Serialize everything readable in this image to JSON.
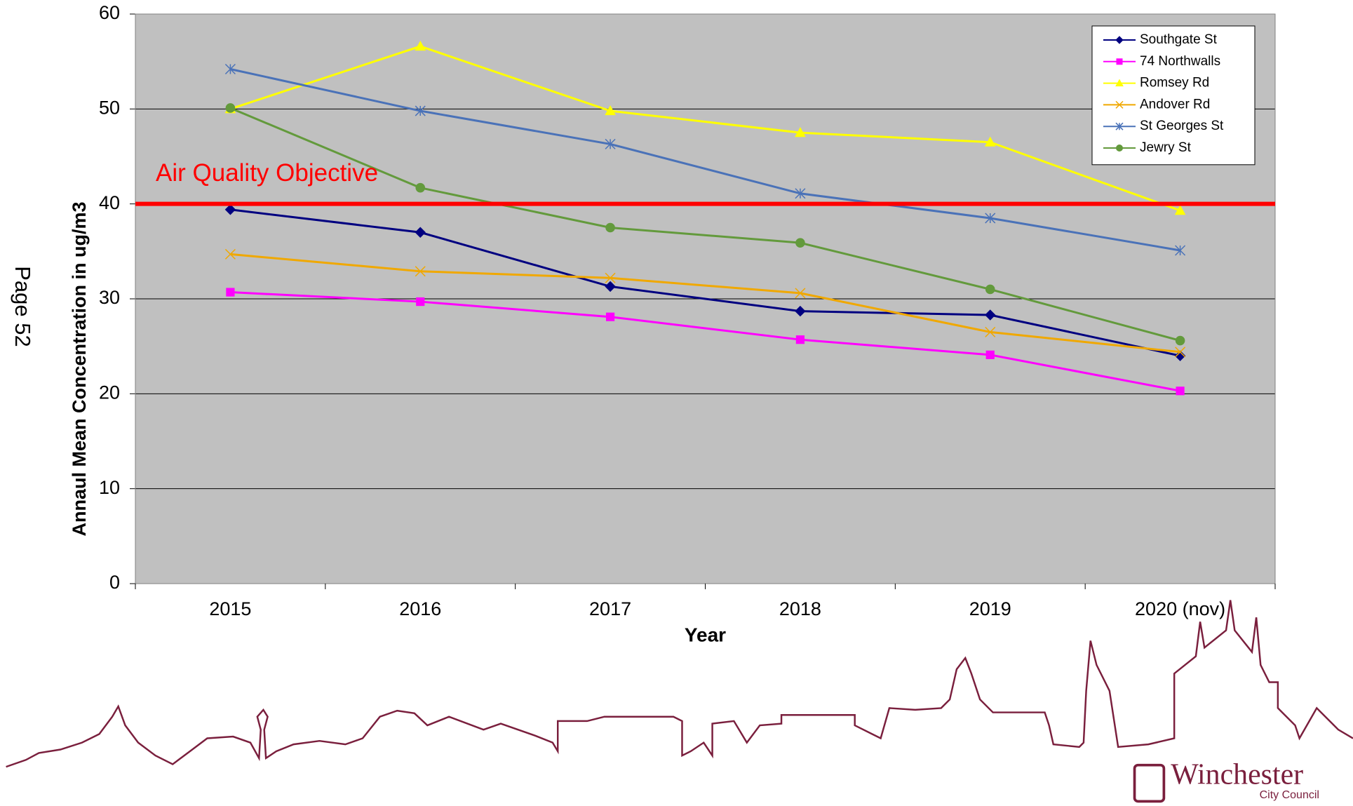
{
  "page_label": "Page 52",
  "logo": {
    "name": "Winchester",
    "sub": "City Council"
  },
  "chart_data": {
    "type": "line",
    "x_label": "Year",
    "y_label": "Annaul Mean Concentration in ug/m3",
    "categories": [
      "2015",
      "2016",
      "2017",
      "2018",
      "2019",
      "2020 (nov)"
    ],
    "series": [
      {
        "name": "Southgate St",
        "color": "#000080",
        "marker": "diamond",
        "values": [
          39.4,
          37.0,
          31.3,
          28.7,
          28.3,
          24.0
        ]
      },
      {
        "name": "74 Northwalls",
        "color": "#ff00ff",
        "marker": "square",
        "values": [
          30.7,
          29.7,
          28.1,
          25.7,
          24.1,
          20.3
        ]
      },
      {
        "name": "Romsey Rd",
        "color": "#ffff00",
        "marker": "triangle",
        "values": [
          50.0,
          56.6,
          49.8,
          47.5,
          46.5,
          39.3
        ]
      },
      {
        "name": "Andover Rd",
        "color": "#f0a800",
        "marker": "x",
        "values": [
          34.7,
          32.9,
          32.2,
          30.6,
          26.5,
          24.4
        ]
      },
      {
        "name": "St Georges St",
        "color": "#4a72b8",
        "marker": "star",
        "values": [
          54.2,
          49.8,
          46.3,
          41.1,
          38.5,
          35.1
        ]
      },
      {
        "name": "Jewry St",
        "color": "#639a3c",
        "marker": "circle",
        "values": [
          50.1,
          41.7,
          37.5,
          35.9,
          31.0,
          25.6
        ]
      }
    ],
    "reference_line": {
      "value": 40,
      "label": "Air Quality Objective",
      "color": "#ff0000"
    },
    "ylim": [
      0,
      60
    ],
    "yticks": [
      0,
      10,
      20,
      30,
      40,
      50,
      60
    ],
    "grid": true,
    "legend": "top-right",
    "background": "#c0c0c0"
  }
}
